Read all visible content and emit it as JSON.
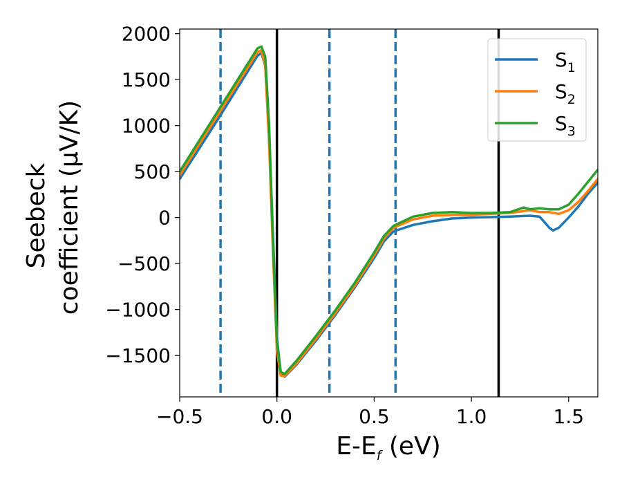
{
  "chart_data": {
    "type": "line",
    "xlabel": {
      "main": "E-E",
      "sub": "f",
      "unit": " (eV)"
    },
    "ylabel": {
      "line1": "Seebeck",
      "line2": "coefficient  (μV/K)"
    },
    "xlim": [
      -0.5,
      1.65
    ],
    "ylim": [
      -1950,
      2050
    ],
    "xticks": [
      {
        "value": -0.5,
        "label": "−0.5"
      },
      {
        "value": 0.0,
        "label": "0.0"
      },
      {
        "value": 0.5,
        "label": "0.5"
      },
      {
        "value": 1.0,
        "label": "1.0"
      },
      {
        "value": 1.5,
        "label": "1.5"
      }
    ],
    "yticks": [
      {
        "value": 2000,
        "label": "2000"
      },
      {
        "value": 1500,
        "label": "1500"
      },
      {
        "value": 1000,
        "label": "1000"
      },
      {
        "value": 500,
        "label": "500"
      },
      {
        "value": 0,
        "label": "0"
      },
      {
        "value": -500,
        "label": "−500"
      },
      {
        "value": -1000,
        "label": "−1000"
      },
      {
        "value": -1500,
        "label": "−1500"
      }
    ],
    "legend_position": "top-right",
    "series": [
      {
        "name": "S",
        "sub": "1",
        "color": "#1f77b4",
        "x": [
          -0.5,
          -0.3,
          -0.1,
          -0.08,
          -0.06,
          -0.04,
          -0.02,
          0.0,
          0.02,
          0.04,
          0.1,
          0.2,
          0.3,
          0.4,
          0.5,
          0.55,
          0.6,
          0.7,
          0.8,
          0.9,
          1.0,
          1.1,
          1.2,
          1.3,
          1.35,
          1.38,
          1.4,
          1.42,
          1.45,
          1.5,
          1.55,
          1.6,
          1.65
        ],
        "y": [
          420,
          1080,
          1760,
          1790,
          1650,
          900,
          -200,
          -1300,
          -1700,
          -1730,
          -1600,
          -1340,
          -1060,
          -760,
          -440,
          -260,
          -150,
          -80,
          -40,
          -10,
          0,
          5,
          10,
          20,
          10,
          -60,
          -110,
          -140,
          -110,
          0,
          120,
          260,
          380
        ]
      },
      {
        "name": "S",
        "sub": "2",
        "color": "#ff7f0e",
        "x": [
          -0.5,
          -0.3,
          -0.1,
          -0.08,
          -0.06,
          -0.04,
          -0.02,
          0.0,
          0.02,
          0.04,
          0.1,
          0.2,
          0.3,
          0.4,
          0.5,
          0.55,
          0.6,
          0.7,
          0.8,
          0.9,
          1.0,
          1.1,
          1.2,
          1.3,
          1.35,
          1.4,
          1.45,
          1.5,
          1.55,
          1.6,
          1.65
        ],
        "y": [
          460,
          1130,
          1800,
          1820,
          1650,
          800,
          -400,
          -1450,
          -1720,
          -1720,
          -1590,
          -1320,
          -1040,
          -740,
          -410,
          -230,
          -110,
          -20,
          20,
          30,
          30,
          40,
          50,
          80,
          60,
          60,
          40,
          80,
          170,
          290,
          420
        ]
      },
      {
        "name": "S",
        "sub": "3",
        "color": "#2ca02c",
        "x": [
          -0.5,
          -0.3,
          -0.1,
          -0.08,
          -0.06,
          -0.04,
          -0.02,
          0.0,
          0.02,
          0.04,
          0.1,
          0.2,
          0.3,
          0.4,
          0.5,
          0.55,
          0.6,
          0.7,
          0.8,
          0.9,
          1.0,
          1.1,
          1.2,
          1.27,
          1.3,
          1.35,
          1.4,
          1.45,
          1.5,
          1.55,
          1.6,
          1.65
        ],
        "y": [
          500,
          1170,
          1840,
          1860,
          1750,
          1000,
          -300,
          -1350,
          -1680,
          -1700,
          -1560,
          -1290,
          -1010,
          -710,
          -380,
          -200,
          -90,
          10,
          50,
          60,
          50,
          50,
          60,
          110,
          90,
          100,
          90,
          90,
          140,
          260,
          390,
          520
        ]
      }
    ],
    "vlines": [
      {
        "x": -0.29,
        "color": "#1f77b4",
        "style": "dashed"
      },
      {
        "x": 0.0,
        "color": "#000000",
        "style": "solid"
      },
      {
        "x": 0.27,
        "color": "#1f77b4",
        "style": "dashed"
      },
      {
        "x": 0.61,
        "color": "#1f77b4",
        "style": "dashed"
      },
      {
        "x": 1.14,
        "color": "#000000",
        "style": "solid"
      }
    ]
  }
}
